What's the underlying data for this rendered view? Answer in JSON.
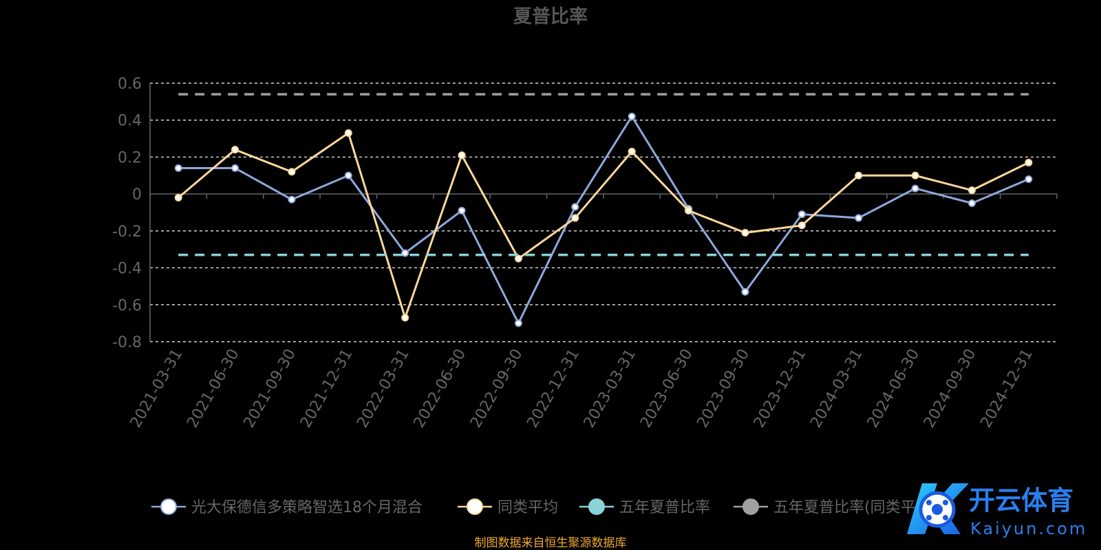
{
  "chart_data": {
    "type": "line",
    "title": "夏普比率",
    "xlabel": "",
    "ylabel": "",
    "ylim": [
      -0.8,
      0.6
    ],
    "yticks": [
      -0.8,
      -0.6,
      -0.4,
      -0.2,
      0,
      0.2,
      0.4,
      0.6
    ],
    "ytick_labels": [
      "-0.8",
      "-0.6",
      "-0.4",
      "-0.2",
      "0",
      "0.2",
      "0.4",
      "0.6"
    ],
    "categories": [
      "2021-03-31",
      "2021-06-30",
      "2021-09-30",
      "2021-12-31",
      "2022-03-31",
      "2022-06-30",
      "2022-09-30",
      "2022-12-31",
      "2023-03-31",
      "2023-06-30",
      "2023-09-30",
      "2023-12-31",
      "2024-03-31",
      "2024-06-30",
      "2024-09-30",
      "2024-12-31"
    ],
    "grid": true,
    "legend_position": "bottom",
    "series": [
      {
        "name": "光大保德信多策略智选18个月混合",
        "color": "#8fa8dc",
        "style": "solid",
        "values": [
          0.14,
          0.14,
          -0.03,
          0.1,
          -0.32,
          -0.09,
          -0.7,
          -0.07,
          0.42,
          -0.08,
          -0.53,
          -0.11,
          -0.13,
          0.03,
          -0.05,
          0.08
        ]
      },
      {
        "name": "同类平均",
        "color": "#ffd89b",
        "style": "solid",
        "values": [
          -0.02,
          0.24,
          0.12,
          0.33,
          -0.67,
          0.21,
          -0.35,
          -0.13,
          0.23,
          -0.09,
          -0.21,
          -0.17,
          0.1,
          0.1,
          0.02,
          0.17
        ]
      },
      {
        "name": "五年夏普比率",
        "color": "#8ad4d8",
        "style": "dashed",
        "values": [
          -0.33,
          -0.33,
          -0.33,
          -0.33,
          -0.33,
          -0.33,
          -0.33,
          -0.33,
          -0.33,
          -0.33,
          -0.33,
          -0.33,
          -0.33,
          -0.33,
          -0.33,
          -0.33
        ]
      },
      {
        "name": "五年夏普比率(同类平均)",
        "color": "#a0a0a0",
        "style": "dashed",
        "values": [
          0.54,
          0.54,
          0.54,
          0.54,
          0.54,
          0.54,
          0.54,
          0.54,
          0.54,
          0.54,
          0.54,
          0.54,
          0.54,
          0.54,
          0.54,
          0.54
        ]
      }
    ]
  },
  "footer": {
    "source": "制图数据来自恒生聚源数据库"
  },
  "watermark": {
    "name": "开云体育",
    "url_text": "Kaiyun.com"
  },
  "colors": {
    "background": "#000000",
    "axis_text": "#666666",
    "grid": "#ffffff",
    "footer": "#f0a830",
    "title": "#555555"
  }
}
